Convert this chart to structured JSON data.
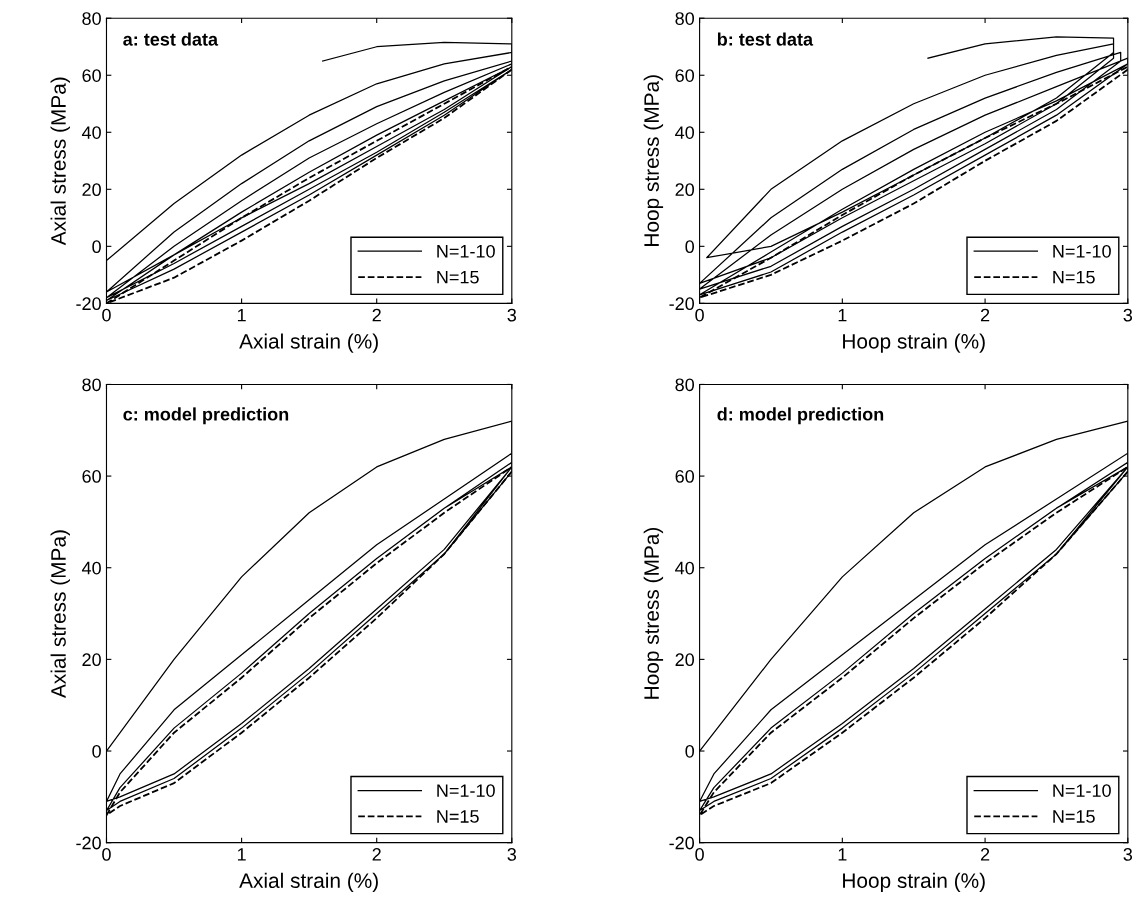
{
  "chart_data": [
    {
      "type": "line",
      "annotations": [
        "a: test data"
      ],
      "xlabel": "Axial strain (%)",
      "ylabel": "Axial stress (MPa)",
      "xlim": [
        0,
        3
      ],
      "ylim": [
        -20,
        80
      ],
      "xticks": [
        0,
        1,
        2,
        3
      ],
      "yticks": [
        -20,
        0,
        20,
        40,
        60,
        80
      ],
      "grid": false,
      "legend": "bottom right",
      "series": [
        {
          "name": "N=1-10",
          "color": "#000000",
          "line_style": "solid",
          "x": [
            1.6,
            2.0,
            2.5,
            3.0,
            3,
            2.5,
            2,
            1.5,
            1,
            0.5,
            0,
            0,
            0.5,
            1,
            1.5,
            2,
            2.5,
            3,
            3,
            2.5,
            2,
            1.5,
            1,
            0.5,
            0,
            0,
            0.5,
            1,
            1.5,
            2,
            2.5,
            3,
            3,
            2.5,
            2,
            1.5,
            1,
            0.5,
            0,
            0,
            0.5,
            1,
            1.5,
            2,
            2.5,
            3,
            3,
            2.5,
            2,
            1.5,
            1,
            0.5,
            0,
            0,
            0.5,
            1,
            1.5,
            2,
            2.5,
            3
          ],
          "values": [
            65,
            70,
            71.5,
            71,
            63,
            48,
            35,
            22,
            10,
            -3,
            -16,
            -5,
            15,
            32,
            46,
            57,
            64,
            68,
            63,
            48,
            35,
            22,
            10,
            -3,
            -16,
            -16,
            5,
            22,
            37,
            49,
            58,
            65,
            62,
            47,
            33,
            20,
            7,
            -6,
            -18,
            -18,
            0,
            16,
            31,
            43,
            54,
            64,
            62,
            46,
            32,
            18,
            5,
            -8,
            -19,
            -19,
            -3,
            12,
            26,
            39,
            51,
            63
          ]
        },
        {
          "name": "N=15",
          "color": "#000000",
          "line_style": "dashed",
          "x": [
            3,
            2.5,
            2,
            1.5,
            1,
            0.5,
            0,
            0,
            0.5,
            1,
            1.5,
            2,
            2.5,
            3
          ],
          "values": [
            62,
            45,
            31,
            16,
            2,
            -11,
            -20,
            -20,
            -5,
            10,
            24,
            37,
            50,
            63
          ]
        }
      ]
    },
    {
      "type": "line",
      "annotations": [
        "b: test data"
      ],
      "xlabel": "Hoop strain (%)",
      "ylabel": "Hoop stress (MPa)",
      "xlim": [
        0,
        3
      ],
      "ylim": [
        -20,
        80
      ],
      "xticks": [
        0,
        1,
        2,
        3
      ],
      "yticks": [
        -20,
        0,
        20,
        40,
        60,
        80
      ],
      "grid": false,
      "legend": "bottom right",
      "series": [
        {
          "name": "N=1-10",
          "color": "#000000",
          "line_style": "solid",
          "x": [
            1.6,
            2.0,
            2.5,
            2.9,
            2.9,
            2.5,
            2,
            1.5,
            1,
            0.5,
            0.05,
            0.05,
            0.5,
            1,
            1.5,
            2,
            2.5,
            2.9,
            2.9,
            2.5,
            2,
            1.5,
            1,
            0.5,
            0,
            0,
            0.5,
            1,
            1.5,
            2,
            2.5,
            2.95,
            2.95,
            2.5,
            2,
            1.5,
            1,
            0.5,
            0,
            0,
            0.5,
            1,
            1.5,
            2,
            2.5,
            3,
            3,
            2.5,
            2,
            1.5,
            1,
            0.5,
            0,
            0,
            0.5,
            1,
            1.5,
            2,
            2.5,
            3
          ],
          "values": [
            66,
            71,
            73.5,
            73,
            68,
            52,
            38,
            25,
            12,
            0,
            -4,
            -4,
            20,
            37,
            50,
            60,
            67,
            71,
            66,
            50,
            36,
            23,
            10,
            -4,
            -13,
            -13,
            10,
            27,
            41,
            52,
            61,
            68,
            65,
            48,
            34,
            20,
            7,
            -7,
            -15,
            -15,
            4,
            20,
            34,
            46,
            56,
            66,
            64,
            46,
            32,
            18,
            5,
            -9,
            -17,
            -17,
            -2,
            13,
            27,
            40,
            51,
            64
          ]
        },
        {
          "name": "N=15",
          "color": "#000000",
          "line_style": "dashed",
          "x": [
            3,
            2.5,
            2,
            1.5,
            1,
            0.5,
            0,
            0,
            0.5,
            1,
            1.5,
            2,
            2.5,
            3
          ],
          "values": [
            62,
            44,
            30,
            15,
            2,
            -10,
            -18,
            -18,
            -4,
            11,
            25,
            38,
            50,
            63
          ]
        }
      ]
    },
    {
      "type": "line",
      "annotations": [
        "c: model prediction"
      ],
      "xlabel": "Axial strain (%)",
      "ylabel": "Axial stress (MPa)",
      "xlim": [
        0,
        3
      ],
      "ylim": [
        -20,
        80
      ],
      "xticks": [
        0,
        1,
        2,
        3
      ],
      "yticks": [
        -20,
        0,
        20,
        40,
        60,
        80
      ],
      "grid": false,
      "legend": "bottom right",
      "series": [
        {
          "name": "N=1-10",
          "color": "#000000",
          "line_style": "solid",
          "x": [
            0,
            0.5,
            1,
            1.5,
            2,
            2.5,
            3,
            3,
            2.5,
            2,
            1.5,
            1,
            0.5,
            0.1,
            0,
            0,
            0.1,
            0.5,
            1,
            1.5,
            2,
            2.5,
            3,
            3,
            2.5,
            2,
            1.5,
            1,
            0.5,
            0.1,
            0,
            0,
            0.1,
            0.5,
            1,
            1.5,
            2,
            2.5,
            3,
            3,
            2.5,
            2,
            1.5,
            1,
            0.5,
            0.1,
            0,
            0,
            0.1,
            0.5,
            1,
            1.5,
            2,
            2.5,
            3
          ],
          "values": [
            0,
            20,
            38,
            52,
            62,
            68,
            72,
            62,
            44,
            31,
            18,
            6,
            -5,
            -10,
            -11,
            -11,
            -5,
            9,
            21,
            33,
            45,
            55,
            65,
            62,
            43,
            30,
            17,
            5,
            -6,
            -11,
            -13,
            -13,
            -8,
            5,
            17,
            30,
            42,
            53,
            63,
            61,
            43,
            30,
            17,
            5,
            -6,
            -11,
            -13,
            -13,
            -8,
            5,
            17,
            30,
            42,
            53,
            62
          ]
        },
        {
          "name": "N=15",
          "color": "#000000",
          "line_style": "dashed",
          "x": [
            3,
            2.5,
            2,
            1.5,
            1,
            0.5,
            0.1,
            0,
            0,
            0.1,
            0.5,
            1,
            1.5,
            2,
            2.5,
            3
          ],
          "values": [
            61,
            43,
            29,
            16,
            4,
            -7,
            -12,
            -14,
            -14,
            -9,
            4,
            16,
            29,
            41,
            52,
            62
          ]
        }
      ]
    },
    {
      "type": "line",
      "annotations": [
        "d: model prediction"
      ],
      "xlabel": "Hoop strain (%)",
      "ylabel": "Hoop stress (MPa)",
      "xlim": [
        0,
        3
      ],
      "ylim": [
        -20,
        80
      ],
      "xticks": [
        0,
        1,
        2,
        3
      ],
      "yticks": [
        -20,
        0,
        20,
        40,
        60,
        80
      ],
      "grid": false,
      "legend": "bottom right",
      "series": [
        {
          "name": "N=1-10",
          "color": "#000000",
          "line_style": "solid",
          "x": [
            0,
            0.5,
            1,
            1.5,
            2,
            2.5,
            3,
            3,
            2.5,
            2,
            1.5,
            1,
            0.5,
            0.1,
            0,
            0,
            0.1,
            0.5,
            1,
            1.5,
            2,
            2.5,
            3,
            3,
            2.5,
            2,
            1.5,
            1,
            0.5,
            0.1,
            0,
            0,
            0.1,
            0.5,
            1,
            1.5,
            2,
            2.5,
            3,
            3,
            2.5,
            2,
            1.5,
            1,
            0.5,
            0.1,
            0,
            0,
            0.1,
            0.5,
            1,
            1.5,
            2,
            2.5,
            3
          ],
          "values": [
            0,
            20,
            38,
            52,
            62,
            68,
            72,
            62,
            44,
            31,
            18,
            6,
            -5,
            -10,
            -11,
            -11,
            -5,
            9,
            21,
            33,
            45,
            55,
            65,
            62,
            43,
            30,
            17,
            5,
            -6,
            -11,
            -13,
            -13,
            -8,
            5,
            17,
            30,
            42,
            53,
            63,
            61,
            43,
            30,
            17,
            5,
            -6,
            -11,
            -13,
            -13,
            -8,
            5,
            17,
            30,
            42,
            53,
            62
          ]
        },
        {
          "name": "N=15",
          "color": "#000000",
          "line_style": "dashed",
          "x": [
            3,
            2.5,
            2,
            1.5,
            1,
            0.5,
            0.1,
            0,
            0,
            0.1,
            0.5,
            1,
            1.5,
            2,
            2.5,
            3
          ],
          "values": [
            61,
            43,
            29,
            16,
            4,
            -7,
            -12,
            -14,
            -14,
            -9,
            4,
            16,
            29,
            41,
            52,
            62
          ]
        }
      ]
    }
  ]
}
